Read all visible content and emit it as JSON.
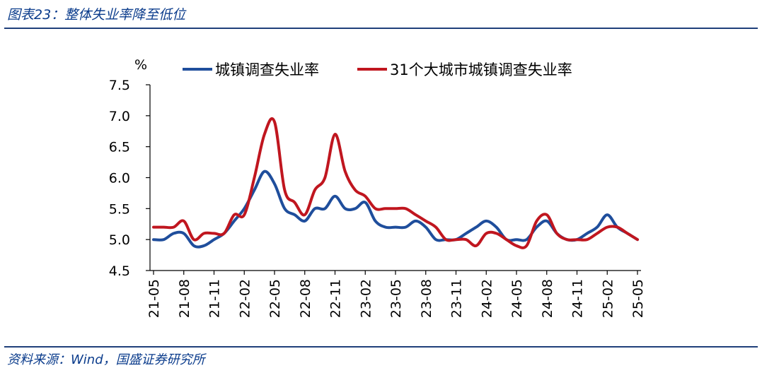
{
  "header": {
    "title": "图表23：整体失业率降至低位"
  },
  "footer": {
    "source": "资料来源：Wind，国盛证券研究所"
  },
  "colors": {
    "series_1": "#1f4e9c",
    "series_2": "#c0161f",
    "rule": "#1f3f7a",
    "heading": "#0b3c8c"
  },
  "chart_data": {
    "type": "line",
    "title": "",
    "ylabel": "%",
    "xlabel": "",
    "ylim": [
      4.5,
      7.5
    ],
    "yticks": [
      "7.5",
      "7.0",
      "6.5",
      "6.0",
      "5.5",
      "5.0",
      "4.5"
    ],
    "xticks": [
      "21-05",
      "21-08",
      "21-11",
      "22-02",
      "22-05",
      "22-08",
      "22-11",
      "23-02",
      "23-05",
      "23-08",
      "23-11",
      "24-02",
      "24-05",
      "24-08",
      "24-11",
      "25-02",
      "25-05"
    ],
    "grid": false,
    "legend": "top",
    "x": [
      "21-05",
      "21-06",
      "21-07",
      "21-08",
      "21-09",
      "21-10",
      "21-11",
      "21-12",
      "22-01",
      "22-02",
      "22-03",
      "22-04",
      "22-05",
      "22-06",
      "22-07",
      "22-08",
      "22-09",
      "22-10",
      "22-11",
      "22-12",
      "23-01",
      "23-02",
      "23-03",
      "23-04",
      "23-05",
      "23-06",
      "23-07",
      "23-08",
      "23-09",
      "23-10",
      "23-11",
      "23-12",
      "24-01",
      "24-02",
      "24-03",
      "24-04",
      "24-05",
      "24-06",
      "24-07",
      "24-08",
      "24-09",
      "24-10",
      "24-11",
      "24-12",
      "25-01",
      "25-02",
      "25-03",
      "25-04",
      "25-05"
    ],
    "series": [
      {
        "name": "城镇调查失业率",
        "values": [
          5.0,
          5.0,
          5.1,
          5.1,
          4.9,
          4.9,
          5.0,
          5.1,
          5.3,
          5.5,
          5.8,
          6.1,
          5.9,
          5.5,
          5.4,
          5.3,
          5.5,
          5.5,
          5.7,
          5.5,
          5.5,
          5.6,
          5.3,
          5.2,
          5.2,
          5.2,
          5.3,
          5.2,
          5.0,
          5.0,
          5.0,
          5.1,
          5.2,
          5.3,
          5.2,
          5.0,
          5.0,
          5.0,
          5.2,
          5.3,
          5.1,
          5.0,
          5.0,
          5.1,
          5.2,
          5.4,
          5.2,
          5.1,
          5.0
        ]
      },
      {
        "name": "31个大城市城镇调查失业率",
        "values": [
          5.2,
          5.2,
          5.2,
          5.3,
          5.0,
          5.1,
          5.1,
          5.1,
          5.4,
          5.4,
          6.0,
          6.7,
          6.9,
          5.8,
          5.6,
          5.4,
          5.8,
          6.0,
          6.7,
          6.1,
          5.8,
          5.7,
          5.5,
          5.5,
          5.5,
          5.5,
          5.4,
          5.3,
          5.2,
          5.0,
          5.0,
          5.0,
          4.9,
          5.1,
          5.1,
          5.0,
          4.9,
          4.9,
          5.3,
          5.4,
          5.1,
          5.0,
          5.0,
          5.0,
          5.1,
          5.2,
          5.2,
          5.1,
          5.0
        ]
      }
    ]
  }
}
